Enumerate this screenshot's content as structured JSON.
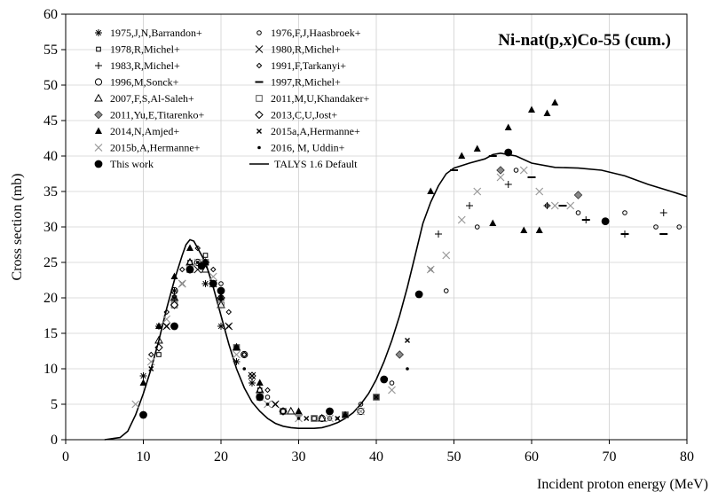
{
  "chart_data": {
    "type": "scatter",
    "title": "Ni-nat(p,x)Co-55 (cum.)",
    "xlabel": "Incident proton energy (MeV)",
    "ylabel": "Cross section (mb)",
    "xlim": [
      0,
      80
    ],
    "ylim": [
      0,
      60
    ],
    "x_ticks": [
      0,
      10,
      20,
      30,
      40,
      50,
      60,
      70,
      80
    ],
    "y_ticks": [
      0,
      5,
      10,
      15,
      20,
      25,
      30,
      35,
      40,
      45,
      50,
      55,
      60
    ],
    "grid": true,
    "legend_position": "top-left",
    "series": [
      {
        "name": "1975,J,N,Barrandon+",
        "marker": "asterisk",
        "color": "#000000",
        "points": [
          [
            10,
            9
          ],
          [
            12,
            16
          ],
          [
            14,
            21
          ],
          [
            16,
            24
          ],
          [
            18,
            22
          ],
          [
            20,
            16
          ],
          [
            22,
            11
          ],
          [
            24,
            8
          ]
        ]
      },
      {
        "name": "1976,F,J,Haasbroek+",
        "marker": "circle-open-small",
        "color": "#000000",
        "points": [
          [
            18,
            25
          ],
          [
            20,
            22
          ],
          [
            23,
            12
          ],
          [
            26,
            6
          ],
          [
            30,
            3.5
          ],
          [
            34,
            3
          ],
          [
            38,
            5
          ],
          [
            42,
            8
          ],
          [
            49,
            21
          ],
          [
            53,
            30
          ],
          [
            58,
            38
          ],
          [
            62,
            33
          ],
          [
            66,
            32
          ],
          [
            72,
            32
          ],
          [
            76,
            30
          ],
          [
            79,
            30
          ]
        ]
      },
      {
        "name": "1978,R,Michel+",
        "marker": "square-small",
        "color": "#000000",
        "points": [
          [
            12,
            12
          ],
          [
            14,
            20
          ],
          [
            16,
            25
          ],
          [
            18,
            26
          ],
          [
            20,
            20
          ],
          [
            22,
            13
          ],
          [
            25,
            7
          ],
          [
            28,
            4
          ],
          [
            32,
            3
          ],
          [
            36,
            3.5
          ],
          [
            40,
            6
          ]
        ]
      },
      {
        "name": "1980,R,Michel+",
        "marker": "x",
        "color": "#000000",
        "points": [
          [
            13,
            16
          ],
          [
            15,
            22
          ],
          [
            17,
            24
          ],
          [
            19,
            22
          ],
          [
            21,
            16
          ],
          [
            24,
            9
          ],
          [
            27,
            5
          ]
        ]
      },
      {
        "name": "1983,R,Michel+",
        "marker": "plus",
        "color": "#000000",
        "points": [
          [
            48,
            29
          ],
          [
            52,
            33
          ],
          [
            57,
            36
          ],
          [
            62,
            33
          ],
          [
            67,
            31
          ],
          [
            72,
            29
          ],
          [
            77,
            32
          ]
        ]
      },
      {
        "name": "1991,F,Tarkanyi+",
        "marker": "diamond-small",
        "color": "#000000",
        "points": [
          [
            11,
            12
          ],
          [
            13,
            18
          ],
          [
            15,
            24
          ],
          [
            17,
            27
          ],
          [
            19,
            24
          ],
          [
            21,
            18
          ],
          [
            23,
            12
          ],
          [
            26,
            7
          ]
        ]
      },
      {
        "name": "1996,M,Sonck+",
        "marker": "circle-open",
        "color": "#000000",
        "points": [
          [
            14,
            21
          ],
          [
            17,
            25
          ],
          [
            20,
            21
          ],
          [
            23,
            12
          ],
          [
            28,
            4
          ],
          [
            33,
            3
          ],
          [
            38,
            4
          ]
        ]
      },
      {
        "name": "1997,R,Michel+",
        "marker": "dash",
        "color": "#000000",
        "points": [
          [
            50,
            38
          ],
          [
            55,
            40
          ],
          [
            60,
            37
          ],
          [
            64,
            33
          ],
          [
            67,
            31
          ],
          [
            72,
            29
          ],
          [
            77,
            29
          ]
        ]
      },
      {
        "name": "2007,F,S,Al-Saleh+",
        "marker": "triangle-open",
        "color": "#000000",
        "points": [
          [
            12,
            14
          ],
          [
            14,
            20
          ],
          [
            16,
            25
          ],
          [
            18,
            24
          ],
          [
            20,
            19
          ],
          [
            22,
            13
          ],
          [
            25,
            7
          ],
          [
            29,
            4
          ],
          [
            33,
            3
          ]
        ]
      },
      {
        "name": "2011,M,U,Khandaker+",
        "marker": "square-open",
        "color": "#555555",
        "points": [
          [
            14,
            19
          ],
          [
            16,
            24
          ],
          [
            18,
            25
          ],
          [
            20,
            19
          ],
          [
            22,
            13
          ],
          [
            25,
            6
          ],
          [
            28,
            4
          ],
          [
            32,
            3
          ],
          [
            36,
            3.5
          ],
          [
            40,
            6
          ]
        ]
      },
      {
        "name": "2011,Yu,E,Titarenko+",
        "marker": "diamond-filled-gray",
        "color": "#888888",
        "points": [
          [
            20,
            20
          ],
          [
            30,
            3.5
          ],
          [
            43,
            12
          ],
          [
            56,
            38
          ],
          [
            66,
            34.5
          ]
        ]
      },
      {
        "name": "2013,C,U,Jost+",
        "marker": "diamond-open",
        "color": "#000000",
        "points": [
          [
            12,
            13
          ],
          [
            14,
            19
          ],
          [
            16,
            24
          ],
          [
            18,
            25
          ],
          [
            20,
            20
          ],
          [
            24,
            9
          ],
          [
            28,
            4
          ]
        ]
      },
      {
        "name": "2014,N,Amjed+",
        "marker": "triangle-filled",
        "color": "#000000",
        "points": [
          [
            10,
            8
          ],
          [
            12,
            16
          ],
          [
            14,
            23
          ],
          [
            16,
            27
          ],
          [
            18,
            25
          ],
          [
            20,
            20
          ],
          [
            22,
            13
          ],
          [
            25,
            8
          ],
          [
            30,
            4
          ],
          [
            36,
            3.5
          ],
          [
            47,
            35
          ],
          [
            51,
            40
          ],
          [
            53,
            41
          ],
          [
            55,
            30.5
          ],
          [
            57,
            44
          ],
          [
            59,
            29.5
          ],
          [
            60,
            46.5
          ],
          [
            61,
            29.5
          ],
          [
            62,
            46
          ],
          [
            63,
            47.5
          ]
        ]
      },
      {
        "name": "2015a,A,Hermanne+",
        "marker": "x-small",
        "color": "#000000",
        "points": [
          [
            11,
            10
          ],
          [
            13,
            16
          ],
          [
            15,
            22
          ],
          [
            17,
            25
          ],
          [
            19,
            22
          ],
          [
            21,
            16
          ],
          [
            24,
            9
          ],
          [
            27,
            5
          ],
          [
            31,
            3
          ],
          [
            35,
            3
          ],
          [
            40,
            6
          ],
          [
            44,
            14
          ],
          [
            47,
            24
          ]
        ]
      },
      {
        "name": "2015b,A,Hermanne+",
        "marker": "x-gray",
        "color": "#999999",
        "points": [
          [
            9,
            5
          ],
          [
            11,
            11
          ],
          [
            13,
            17
          ],
          [
            15,
            22
          ],
          [
            17,
            25
          ],
          [
            19,
            23
          ],
          [
            22,
            12
          ],
          [
            26,
            5
          ],
          [
            30,
            3
          ],
          [
            34,
            3
          ],
          [
            38,
            4
          ],
          [
            42,
            7
          ],
          [
            47,
            24
          ],
          [
            49,
            26
          ],
          [
            51,
            31
          ],
          [
            53,
            35
          ],
          [
            56,
            37
          ],
          [
            59,
            38
          ],
          [
            61,
            35
          ],
          [
            63,
            33
          ],
          [
            65,
            33
          ]
        ]
      },
      {
        "name": "2016, M, Uddin+",
        "marker": "dot",
        "color": "#000000",
        "points": [
          [
            14,
            20
          ],
          [
            17,
            25
          ],
          [
            20,
            20
          ],
          [
            23,
            10
          ],
          [
            26,
            5
          ],
          [
            30,
            3
          ],
          [
            35,
            3
          ],
          [
            40,
            6
          ],
          [
            44,
            10
          ]
        ]
      },
      {
        "name": "This work",
        "marker": "circle-filled",
        "color": "#000000",
        "points": [
          [
            10,
            3.5
          ],
          [
            14,
            16
          ],
          [
            16,
            24
          ],
          [
            17.5,
            24.5
          ],
          [
            19,
            22
          ],
          [
            20,
            21
          ],
          [
            25,
            6
          ],
          [
            34,
            4
          ],
          [
            41,
            8.5
          ],
          [
            45.5,
            20.5
          ],
          [
            57,
            40.5
          ],
          [
            69.5,
            30.8
          ]
        ]
      },
      {
        "name": "TALYS 1.6 Default",
        "line": true,
        "color": "#000000",
        "points": [
          [
            5,
            0
          ],
          [
            7,
            0.3
          ],
          [
            8,
            1.2
          ],
          [
            9,
            3.5
          ],
          [
            10,
            6.5
          ],
          [
            11,
            10
          ],
          [
            12,
            14
          ],
          [
            13,
            18.5
          ],
          [
            14,
            22.5
          ],
          [
            15,
            26
          ],
          [
            15.5,
            27.5
          ],
          [
            16,
            28.2
          ],
          [
            16.5,
            28
          ],
          [
            17,
            27
          ],
          [
            18,
            25
          ],
          [
            19,
            21.5
          ],
          [
            20,
            17.5
          ],
          [
            21,
            13.5
          ],
          [
            22,
            10
          ],
          [
            23,
            7.3
          ],
          [
            24,
            5.3
          ],
          [
            25,
            4
          ],
          [
            26,
            3
          ],
          [
            27,
            2.3
          ],
          [
            28,
            1.9
          ],
          [
            29,
            1.7
          ],
          [
            30,
            1.6
          ],
          [
            31,
            1.6
          ],
          [
            32,
            1.6
          ],
          [
            33,
            1.7
          ],
          [
            34,
            2
          ],
          [
            35,
            2.4
          ],
          [
            36,
            3
          ],
          [
            37,
            3.8
          ],
          [
            38,
            5
          ],
          [
            39,
            6.5
          ],
          [
            40,
            8.5
          ],
          [
            41,
            11
          ],
          [
            42,
            14
          ],
          [
            43,
            17.5
          ],
          [
            44,
            21.5
          ],
          [
            45,
            26
          ],
          [
            46,
            30.5
          ],
          [
            47,
            33.5
          ],
          [
            48,
            35.8
          ],
          [
            49,
            37.5
          ],
          [
            50,
            38.3
          ],
          [
            52,
            39
          ],
          [
            54,
            39.6
          ],
          [
            55,
            40.2
          ],
          [
            56,
            40.4
          ],
          [
            58,
            40
          ],
          [
            60,
            39
          ],
          [
            63,
            38.4
          ],
          [
            66,
            38.3
          ],
          [
            69,
            38
          ],
          [
            72,
            37.2
          ],
          [
            75,
            36
          ],
          [
            78,
            35
          ],
          [
            80,
            34.3
          ]
        ]
      }
    ]
  }
}
